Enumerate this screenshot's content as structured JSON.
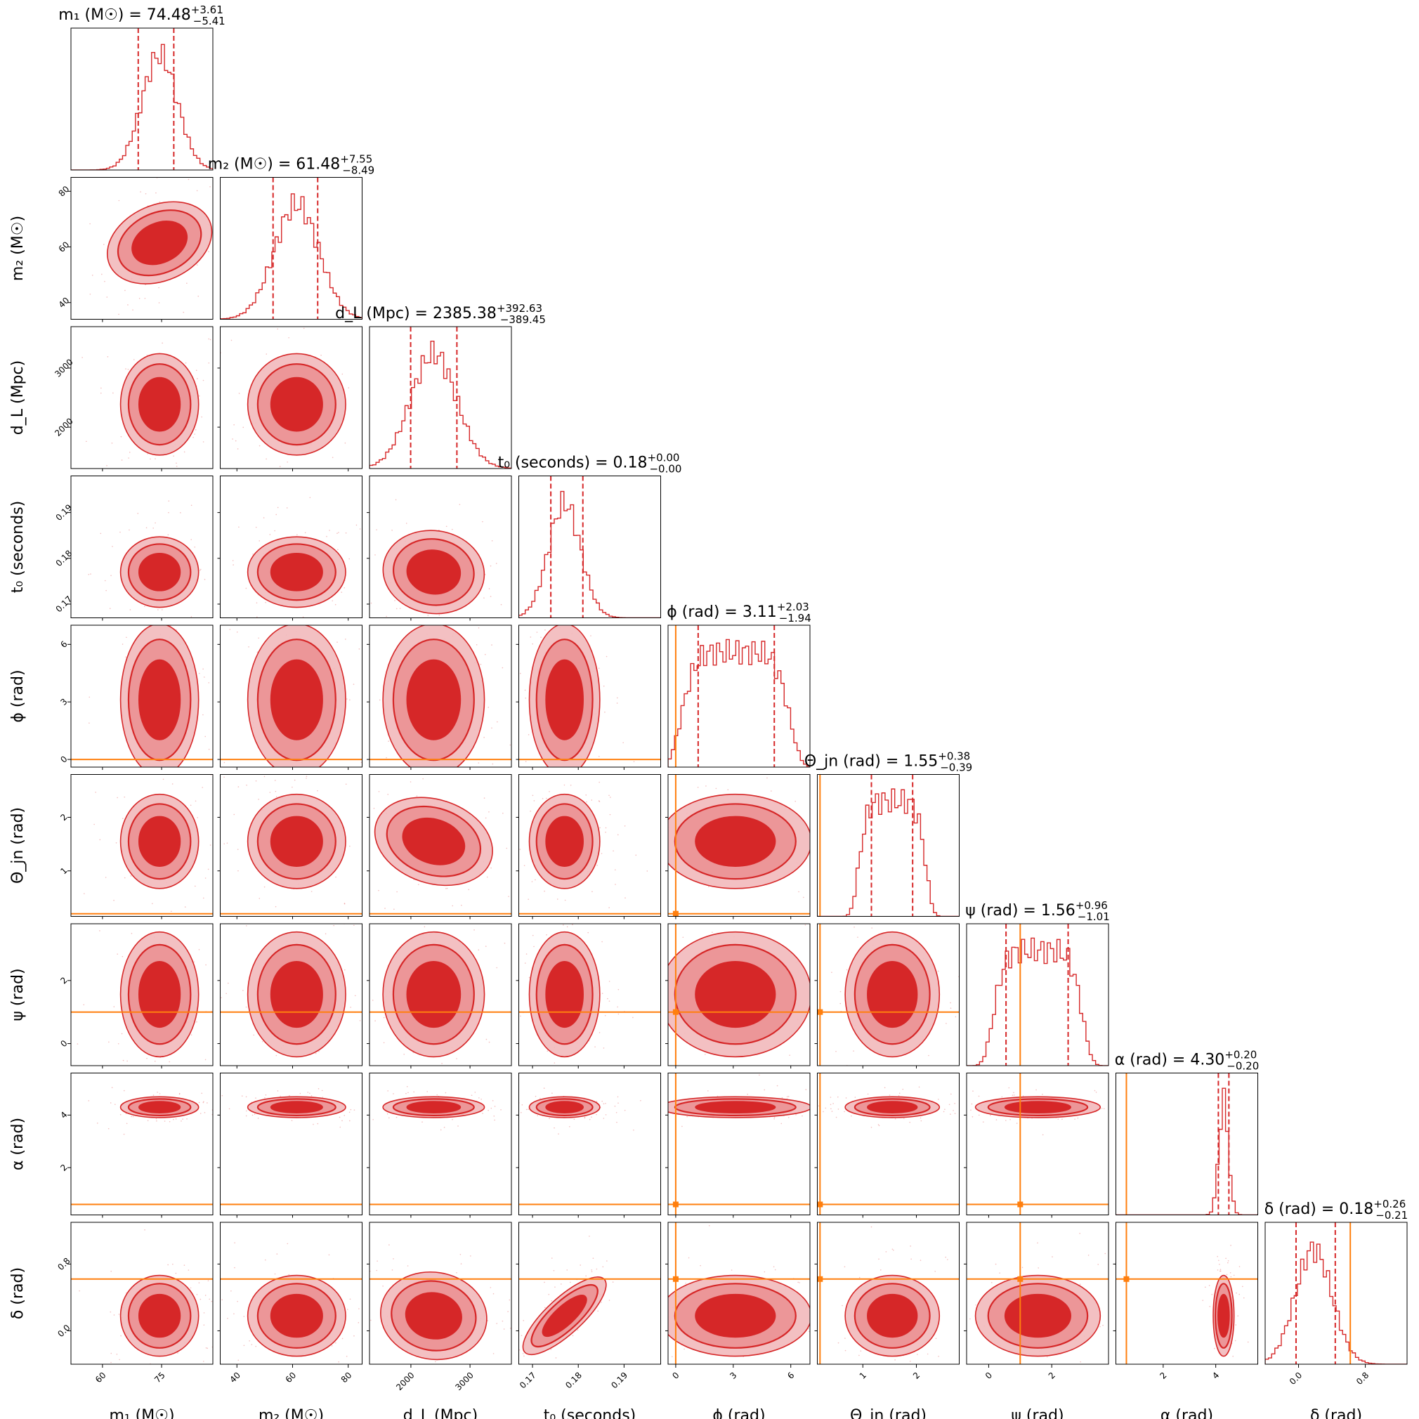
{
  "chart_data": {
    "type": "corner",
    "colors": {
      "posterior": "#d62728",
      "truth": "#ff7f0e",
      "frame": "#000000",
      "background": "#ffffff"
    },
    "parameters": [
      {
        "id": "m1",
        "axis_label": "m₁ (M☉)",
        "title": "m₁ (M☉) = 74.48",
        "title_plus": "+3.61",
        "title_minus": "−5.41",
        "median": 74.48,
        "plus": 3.61,
        "minus": 5.41,
        "range": [
          52,
          88
        ],
        "ticks": [
          60,
          75
        ],
        "tick_labels": [
          "60",
          "75"
        ],
        "sd": 4.5,
        "truth": null
      },
      {
        "id": "m2",
        "axis_label": "m₂ (M☉)",
        "title": "m₂ (M☉) = 61.48",
        "title_plus": "+7.55",
        "title_minus": "−8.49",
        "median": 61.48,
        "plus": 7.55,
        "minus": 8.49,
        "range": [
          34,
          85
        ],
        "ticks": [
          40,
          60,
          80
        ],
        "tick_labels": [
          "40",
          "60",
          "80"
        ],
        "sd": 8.0,
        "truth": null
      },
      {
        "id": "dL",
        "axis_label": "d_L (Mpc)",
        "title": "d_L (Mpc) = 2385.38",
        "title_plus": "+392.63",
        "title_minus": "−389.45",
        "median": 2385.38,
        "plus": 392.63,
        "minus": 389.45,
        "range": [
          1300,
          3700
        ],
        "ticks": [
          2000,
          3000
        ],
        "tick_labels": [
          "2000",
          "3000"
        ],
        "sd": 390,
        "truth": null
      },
      {
        "id": "t0",
        "axis_label": "t₀ (seconds)",
        "title": "t₀ (seconds) = 0.18",
        "title_plus": "+0.00",
        "title_minus": "−0.00",
        "median": 0.177,
        "plus": 0.004,
        "minus": 0.003,
        "range": [
          0.167,
          0.198
        ],
        "ticks": [
          0.17,
          0.18,
          0.19
        ],
        "tick_labels": [
          "0.17",
          "0.18",
          "0.19"
        ],
        "sd": 0.0035,
        "truth": null
      },
      {
        "id": "phi",
        "axis_label": "ϕ (rad)",
        "title": "ϕ (rad) = 3.11",
        "title_plus": "+2.03",
        "title_minus": "−1.94",
        "median": 3.11,
        "plus": 2.03,
        "minus": 1.94,
        "range": [
          -0.4,
          7.0
        ],
        "ticks": [
          0,
          3,
          6
        ],
        "tick_labels": [
          "0",
          "3",
          "6"
        ],
        "sd": 1.8,
        "truth": 0.0
      },
      {
        "id": "theta_jn",
        "axis_label": "Θ_jn (rad)",
        "title": "Θ_jn (rad) = 1.55",
        "title_plus": "+0.38",
        "title_minus": "−0.39",
        "median": 1.55,
        "plus": 0.38,
        "minus": 0.39,
        "range": [
          0.15,
          2.8
        ],
        "ticks": [
          1,
          2
        ],
        "tick_labels": [
          "1",
          "2"
        ],
        "sd": 0.4,
        "truth": 0.2
      },
      {
        "id": "psi",
        "axis_label": "ψ (rad)",
        "title": "ψ (rad) = 1.56",
        "title_plus": "+0.96",
        "title_minus": "−1.01",
        "median": 1.56,
        "plus": 0.96,
        "minus": 1.01,
        "range": [
          -0.7,
          3.8
        ],
        "ticks": [
          0,
          2
        ],
        "tick_labels": [
          "0",
          "2"
        ],
        "sd": 0.9,
        "truth": 1.0
      },
      {
        "id": "alpha",
        "axis_label": "α (rad)",
        "title": "α (rad) = 4.30",
        "title_plus": "+0.20",
        "title_minus": "−0.20",
        "median": 4.3,
        "plus": 0.2,
        "minus": 0.2,
        "range": [
          0.2,
          5.6
        ],
        "ticks": [
          2,
          4
        ],
        "tick_labels": [
          "2",
          "4"
        ],
        "sd": 0.18,
        "truth": 0.6
      },
      {
        "id": "delta",
        "axis_label": "δ (rad)",
        "title": "δ (rad) = 0.18",
        "title_plus": "+0.26",
        "title_minus": "−0.21",
        "median": 0.18,
        "plus": 0.26,
        "minus": 0.21,
        "range": [
          -0.4,
          1.3
        ],
        "ticks": [
          0.0,
          0.8
        ],
        "tick_labels": [
          "0.0",
          "0.8"
        ],
        "sd": 0.22,
        "truth": 0.62
      }
    ],
    "correlations": {
      "m1-m2": 0.35,
      "dL-theta_jn": -0.35,
      "t0-delta": 0.8,
      "dL-delta": -0.2,
      "dL-t0": -0.2
    }
  }
}
